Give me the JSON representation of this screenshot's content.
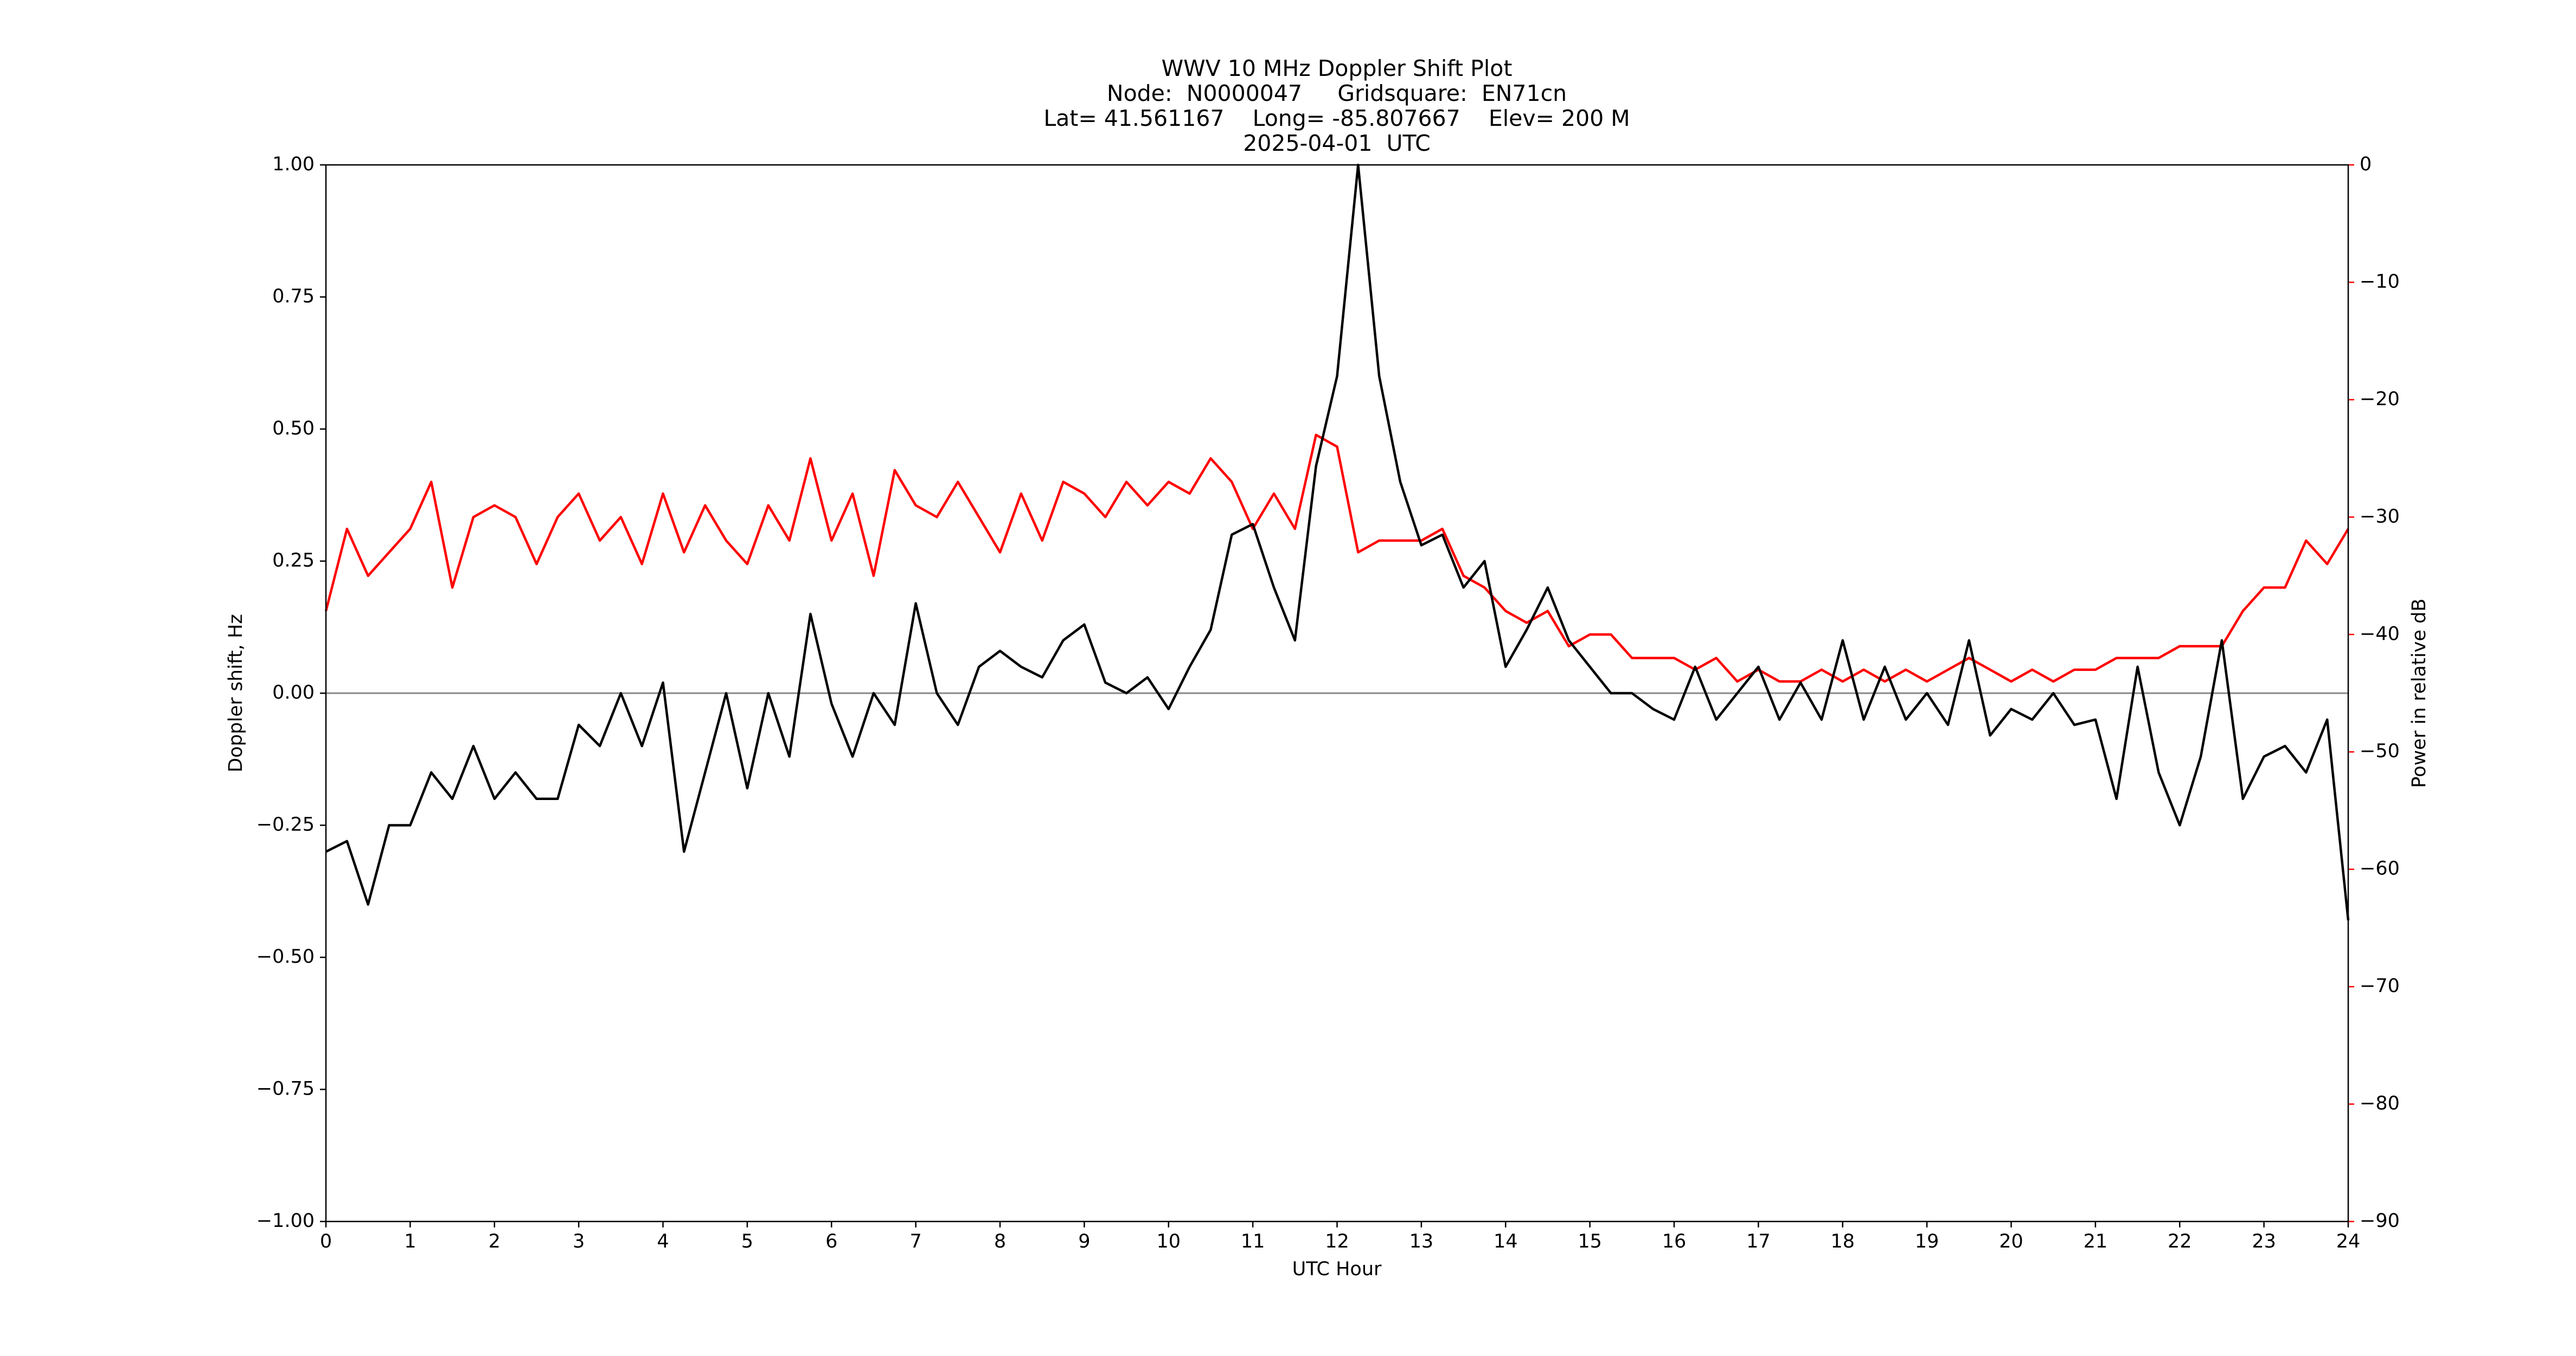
{
  "chart_data": {
    "type": "line",
    "title": "WWV 10 MHz Doppler Shift Plot",
    "subtitle": [
      "Node:  N0000047     Gridsquare:  EN71cn",
      "Lat= 41.561167    Long= -85.807667    Elev= 200 M",
      "2025-04-01  UTC"
    ],
    "xlabel": "UTC Hour",
    "ylabel": "Doppler shift, Hz",
    "y2label": "Power in relative dB",
    "x": [
      0,
      0.25,
      0.5,
      0.75,
      1,
      1.25,
      1.5,
      1.75,
      2,
      2.25,
      2.5,
      2.75,
      3,
      3.25,
      3.5,
      3.75,
      4,
      4.25,
      4.5,
      4.75,
      5,
      5.25,
      5.5,
      5.75,
      6,
      6.25,
      6.5,
      6.75,
      7,
      7.25,
      7.5,
      7.75,
      8,
      8.25,
      8.5,
      8.75,
      9,
      9.25,
      9.5,
      9.75,
      10,
      10.25,
      10.5,
      10.75,
      11,
      11.25,
      11.5,
      11.75,
      12,
      12.25,
      12.5,
      12.75,
      13,
      13.25,
      13.5,
      13.75,
      14,
      14.25,
      14.5,
      14.75,
      15,
      15.25,
      15.5,
      15.75,
      16,
      16.25,
      16.5,
      16.75,
      17,
      17.25,
      17.5,
      17.75,
      18,
      18.25,
      18.5,
      18.75,
      19,
      19.25,
      19.5,
      19.75,
      20,
      20.25,
      20.5,
      20.75,
      21,
      21.25,
      21.5,
      21.75,
      22,
      22.25,
      22.5,
      22.75,
      23,
      23.25,
      23.5,
      23.75,
      24
    ],
    "series": [
      {
        "color": "#000000",
        "axis": "y",
        "values": [
          -0.3,
          -0.28,
          -0.4,
          -0.25,
          -0.25,
          -0.15,
          -0.2,
          -0.1,
          -0.2,
          -0.15,
          -0.2,
          -0.2,
          -0.06,
          -0.1,
          0.0,
          -0.1,
          0.02,
          -0.3,
          -0.15,
          0.0,
          -0.18,
          0.0,
          -0.12,
          0.15,
          -0.02,
          -0.12,
          0.0,
          -0.06,
          0.17,
          0.0,
          -0.06,
          0.05,
          0.08,
          0.05,
          0.03,
          0.1,
          0.13,
          0.02,
          0.0,
          0.03,
          -0.03,
          0.05,
          0.12,
          0.3,
          0.32,
          0.2,
          0.1,
          0.43,
          0.6,
          1.0,
          0.6,
          0.4,
          0.28,
          0.3,
          0.2,
          0.25,
          0.05,
          0.12,
          0.2,
          0.1,
          0.05,
          0.0,
          0.0,
          -0.03,
          -0.05,
          0.05,
          -0.05,
          0.0,
          0.05,
          -0.05,
          0.02,
          -0.05,
          0.1,
          -0.05,
          0.05,
          -0.05,
          0.0,
          -0.06,
          0.1,
          -0.08,
          -0.03,
          -0.05,
          0.0,
          -0.06,
          -0.05,
          -0.2,
          0.05,
          -0.15,
          -0.25,
          -0.12,
          0.1,
          -0.2,
          -0.12,
          -0.1,
          -0.15,
          -0.05,
          -0.43
        ]
      },
      {
        "color": "#ff0000",
        "axis": "y2",
        "values": [
          -38,
          -31,
          -35,
          -33,
          -31,
          -27,
          -36,
          -30,
          -29,
          -30,
          -34,
          -30,
          -28,
          -32,
          -30,
          -34,
          -28,
          -33,
          -29,
          -32,
          -34,
          -29,
          -32,
          -25,
          -32,
          -28,
          -35,
          -26,
          -29,
          -30,
          -27,
          -30,
          -33,
          -28,
          -32,
          -27,
          -28,
          -30,
          -27,
          -29,
          -27,
          -28,
          -25,
          -27,
          -31,
          -28,
          -31,
          -23,
          -24,
          -33,
          -32,
          -32,
          -32,
          -31,
          -35,
          -36,
          -38,
          -39,
          -38,
          -41,
          -40,
          -40,
          -42,
          -42,
          -42,
          -43,
          -42,
          -44,
          -43,
          -44,
          -44,
          -43,
          -44,
          -43,
          -44,
          -43,
          -44,
          -43,
          -42,
          -43,
          -44,
          -43,
          -44,
          -43,
          -43,
          -42,
          -42,
          -42,
          -41,
          -41,
          -41,
          -38,
          -36,
          -36,
          -32,
          -34,
          -31
        ]
      }
    ],
    "reference_line": 0,
    "xlim": [
      0,
      24
    ],
    "xticks": [
      0,
      1,
      2,
      3,
      4,
      5,
      6,
      7,
      8,
      9,
      10,
      11,
      12,
      13,
      14,
      15,
      16,
      17,
      18,
      19,
      20,
      21,
      22,
      23,
      24
    ],
    "ylim": [
      -1,
      1
    ],
    "yticks": [
      {
        "value": -1,
        "label": "−1.00"
      },
      {
        "value": -0.75,
        "label": "−0.75"
      },
      {
        "value": -0.5,
        "label": "−0.50"
      },
      {
        "value": -0.25,
        "label": "−0.25"
      },
      {
        "value": 0,
        "label": "0.00"
      },
      {
        "value": 0.25,
        "label": "0.25"
      },
      {
        "value": 0.5,
        "label": "0.50"
      },
      {
        "value": 0.75,
        "label": "0.75"
      },
      {
        "value": 1,
        "label": "1.00"
      }
    ],
    "y2lim": [
      -90,
      0
    ],
    "y2ticks": [
      {
        "value": -90,
        "label": "−90"
      },
      {
        "value": -80,
        "label": "−80"
      },
      {
        "value": -70,
        "label": "−70"
      },
      {
        "value": -60,
        "label": "−60"
      },
      {
        "value": -50,
        "label": "−50"
      },
      {
        "value": -40,
        "label": "−40"
      },
      {
        "value": -30,
        "label": "−30"
      },
      {
        "value": -20,
        "label": "−20"
      },
      {
        "value": -10,
        "label": "−10"
      },
      0
    ],
    "y2color": "#ff0000"
  }
}
